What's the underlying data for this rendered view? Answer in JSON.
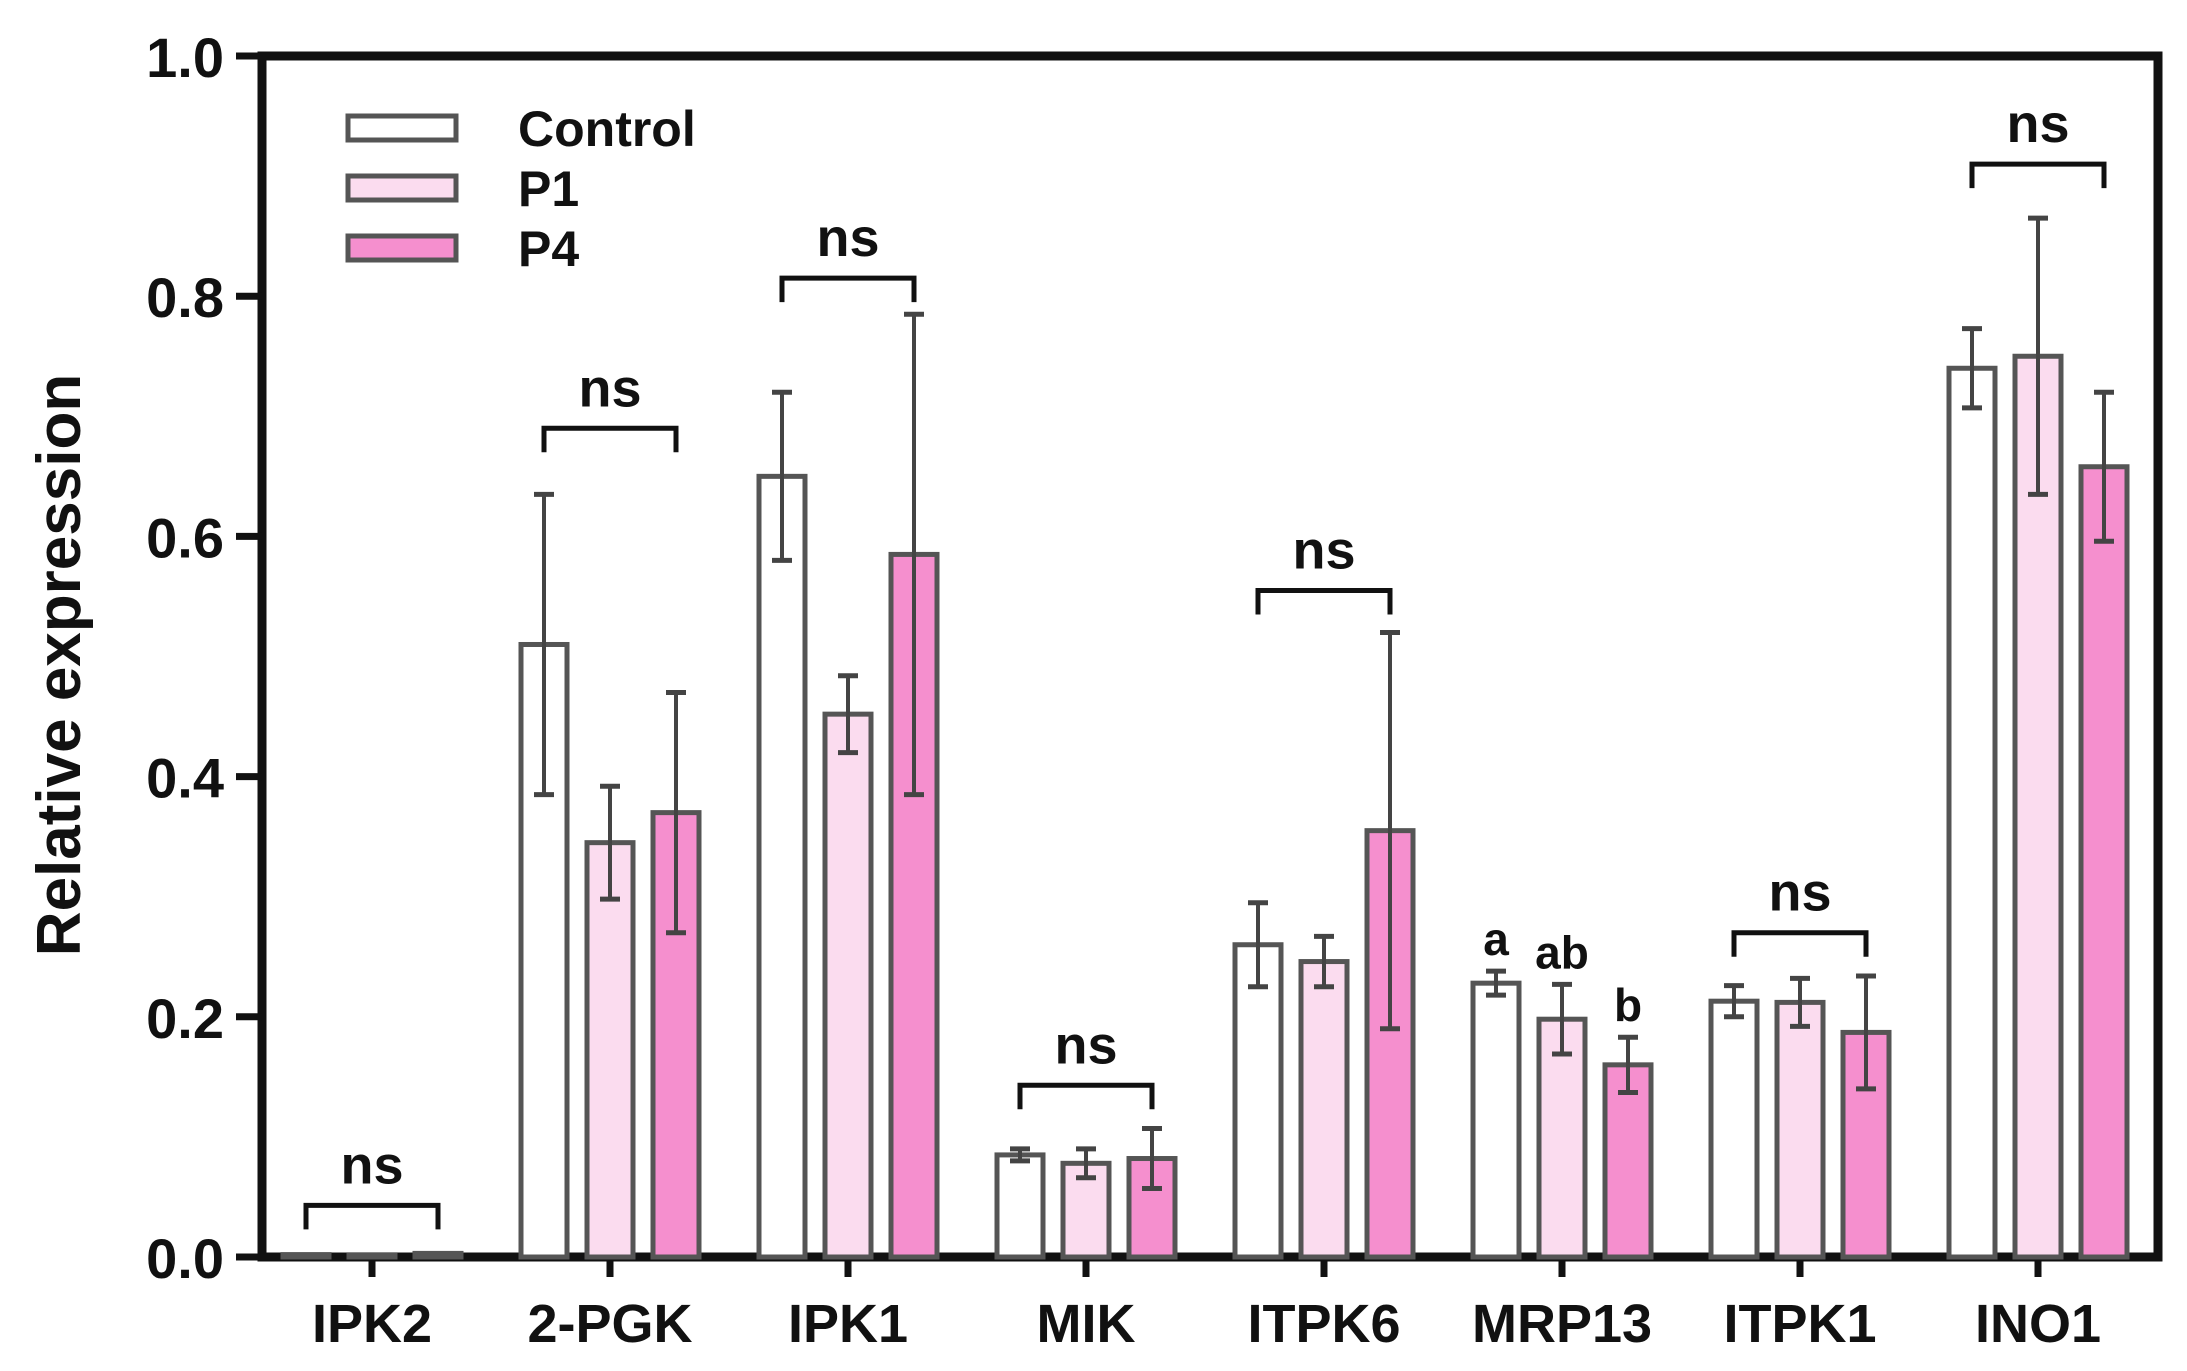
{
  "chart_data": {
    "type": "bar",
    "title": "",
    "xlabel": "",
    "ylabel": "Relative expression",
    "ylim": [
      0,
      1.0
    ],
    "yticks": [
      0.0,
      0.2,
      0.4,
      0.6,
      0.8,
      1.0
    ],
    "ytick_labels": [
      "0.0",
      "0.2",
      "0.4",
      "0.6",
      "0.8",
      "1.0"
    ],
    "grid": false,
    "legend_position": "top-left",
    "categories": [
      "IPK2",
      "2-PGK",
      "IPK1",
      "MIK",
      "ITPK6",
      "MRP13",
      "ITPK1",
      "INO1"
    ],
    "series": [
      {
        "name": "Control",
        "color": "#ffffff",
        "values": [
          0.002,
          0.51,
          0.65,
          0.085,
          0.26,
          0.228,
          0.213,
          0.74
        ],
        "errors": [
          0.001,
          0.125,
          0.07,
          0.005,
          0.035,
          0.01,
          0.013,
          0.033
        ]
      },
      {
        "name": "P1",
        "color": "#fbdcef",
        "values": [
          0.001,
          0.345,
          0.452,
          0.078,
          0.246,
          0.198,
          0.212,
          0.75
        ],
        "errors": [
          0.001,
          0.047,
          0.032,
          0.012,
          0.021,
          0.029,
          0.02,
          0.115
        ]
      },
      {
        "name": "P4",
        "color": "#f58fce",
        "values": [
          0.003,
          0.37,
          0.585,
          0.082,
          0.355,
          0.16,
          0.187,
          0.658
        ],
        "errors": [
          0.001,
          0.1,
          0.2,
          0.025,
          0.165,
          0.023,
          0.047,
          0.062
        ]
      }
    ],
    "annotations": [
      {
        "category": "IPK2",
        "text": "ns",
        "type": "bracket",
        "y": 0.043
      },
      {
        "category": "2-PGK",
        "text": "ns",
        "type": "bracket",
        "y": 0.69
      },
      {
        "category": "IPK1",
        "text": "ns",
        "type": "bracket",
        "y": 0.815
      },
      {
        "category": "MIK",
        "text": "ns",
        "type": "bracket",
        "y": 0.143
      },
      {
        "category": "ITPK6",
        "text": "ns",
        "type": "bracket",
        "y": 0.555
      },
      {
        "category": "ITPK1",
        "text": "ns",
        "type": "bracket",
        "y": 0.27
      },
      {
        "category": "INO1",
        "text": "ns",
        "type": "bracket",
        "y": 0.91
      },
      {
        "category": "MRP13",
        "series": 0,
        "text": "a",
        "type": "letter"
      },
      {
        "category": "MRP13",
        "series": 1,
        "text": "ab",
        "type": "letter"
      },
      {
        "category": "MRP13",
        "series": 2,
        "text": "b",
        "type": "letter"
      }
    ]
  }
}
